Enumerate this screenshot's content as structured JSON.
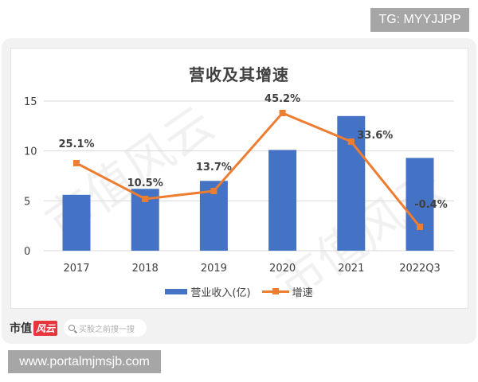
{
  "badges": {
    "tg": "TG: MYYJJPP",
    "url": "www.portalmjmsjb.com"
  },
  "chart": {
    "title": "营收及其增速"
  },
  "legend": {
    "bar_label": "营业收入(亿)",
    "line_label": "增速"
  },
  "footer": {
    "brand_text": "市值",
    "brand_badge": "风云",
    "search_placeholder": "买股之前搜一搜"
  },
  "watermark": "市值风云",
  "colors": {
    "bar": "#4472c4",
    "line": "#ed7d31",
    "grid": "#d9d9d9",
    "text": "#404040"
  },
  "chart_data": {
    "type": "bar",
    "title": "营收及其增速",
    "categories": [
      "2017",
      "2018",
      "2019",
      "2020",
      "2021",
      "2022Q3"
    ],
    "series": [
      {
        "name": "营业收入(亿)",
        "type": "bar",
        "axis": "left",
        "values": [
          5.6,
          6.2,
          7.0,
          10.1,
          13.5,
          9.3
        ]
      },
      {
        "name": "增速",
        "type": "line",
        "axis": "right",
        "values": [
          25.1,
          10.5,
          13.7,
          45.2,
          33.6,
          -0.4
        ],
        "labels": [
          "25.1%",
          "10.5%",
          "13.7%",
          "45.2%",
          "33.6%",
          "-0.4%"
        ]
      }
    ],
    "xlabel": "",
    "ylabel": "",
    "ylim": [
      0,
      15
    ],
    "yticks": [
      0,
      5,
      10,
      15
    ],
    "grid": true,
    "legend_position": "bottom"
  }
}
